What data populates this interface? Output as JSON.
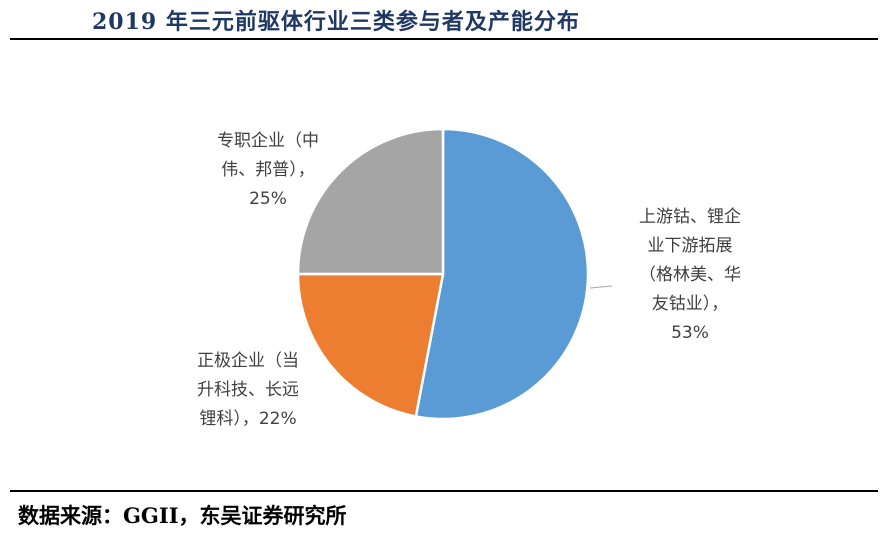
{
  "header": {
    "title": "2019 年三元前驱体行业三类参与者及产能分布"
  },
  "footer": {
    "source": "数据来源：GGII，东吴证券研究所"
  },
  "chart_data": {
    "type": "pie",
    "title": "2019 年三元前驱体行业三类参与者及产能分布",
    "slices": [
      {
        "label_lines": [
          "上游钴、锂企",
          "业下游拓展",
          "（格林美、华",
          "友钴业），",
          "53%"
        ],
        "value": 53,
        "color": "#5b9bd5"
      },
      {
        "label_lines": [
          "正极企业（当",
          "升科技、长远",
          "锂科），22%"
        ],
        "value": 22,
        "color": "#ed7d31"
      },
      {
        "label_lines": [
          "专职企业（中",
          "伟、邦普），",
          "25%"
        ],
        "value": 25,
        "color": "#a5a5a5"
      }
    ]
  }
}
